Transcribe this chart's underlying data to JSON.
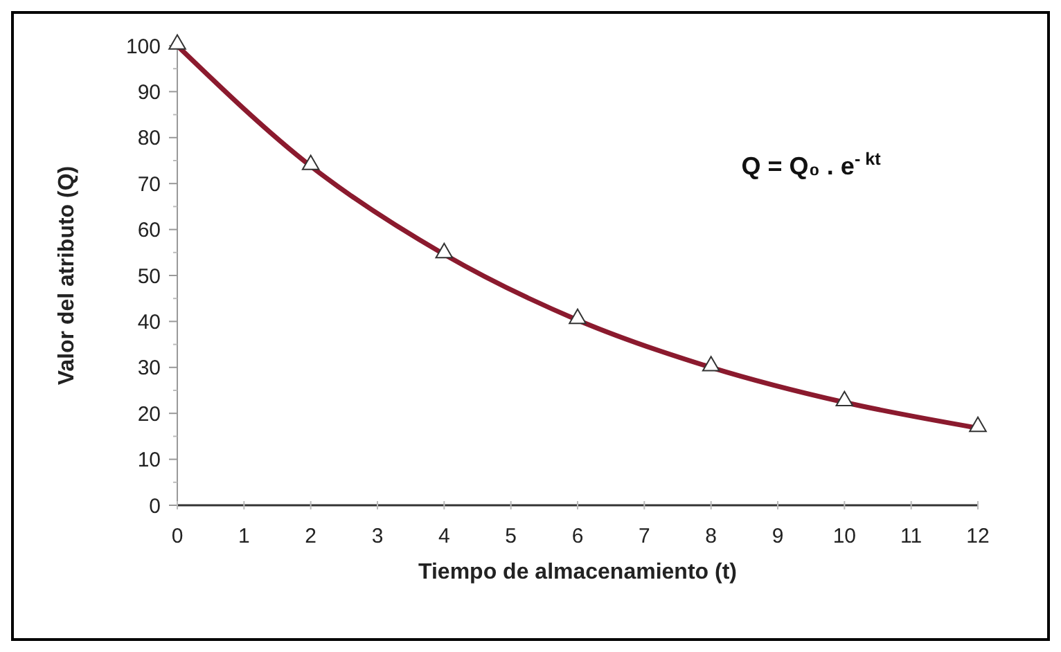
{
  "chart_data": {
    "type": "line",
    "xlabel": "Tiempo de almacenamiento (t)",
    "ylabel": "Valor del atributo (Q)",
    "annotations": [
      "Q = Q₀ . e$^{- kt}$"
    ],
    "x": [
      0,
      2,
      4,
      6,
      8,
      10,
      12
    ],
    "series": [
      {
        "color": "#8b1a2e",
        "values": [
          100,
          73.8,
          54.6,
          40.3,
          30.0,
          22.4,
          16.8
        ]
      }
    ],
    "xlim": [
      0,
      12
    ],
    "ylim": [
      0,
      100
    ],
    "xticks": [
      0,
      1,
      2,
      3,
      4,
      5,
      6,
      7,
      8,
      9,
      10,
      11,
      12
    ],
    "yticks": [
      0,
      10,
      20,
      30,
      40,
      50,
      60,
      70,
      80,
      90,
      100
    ],
    "marker": "triangle",
    "line_style": "solid",
    "grid": false
  }
}
